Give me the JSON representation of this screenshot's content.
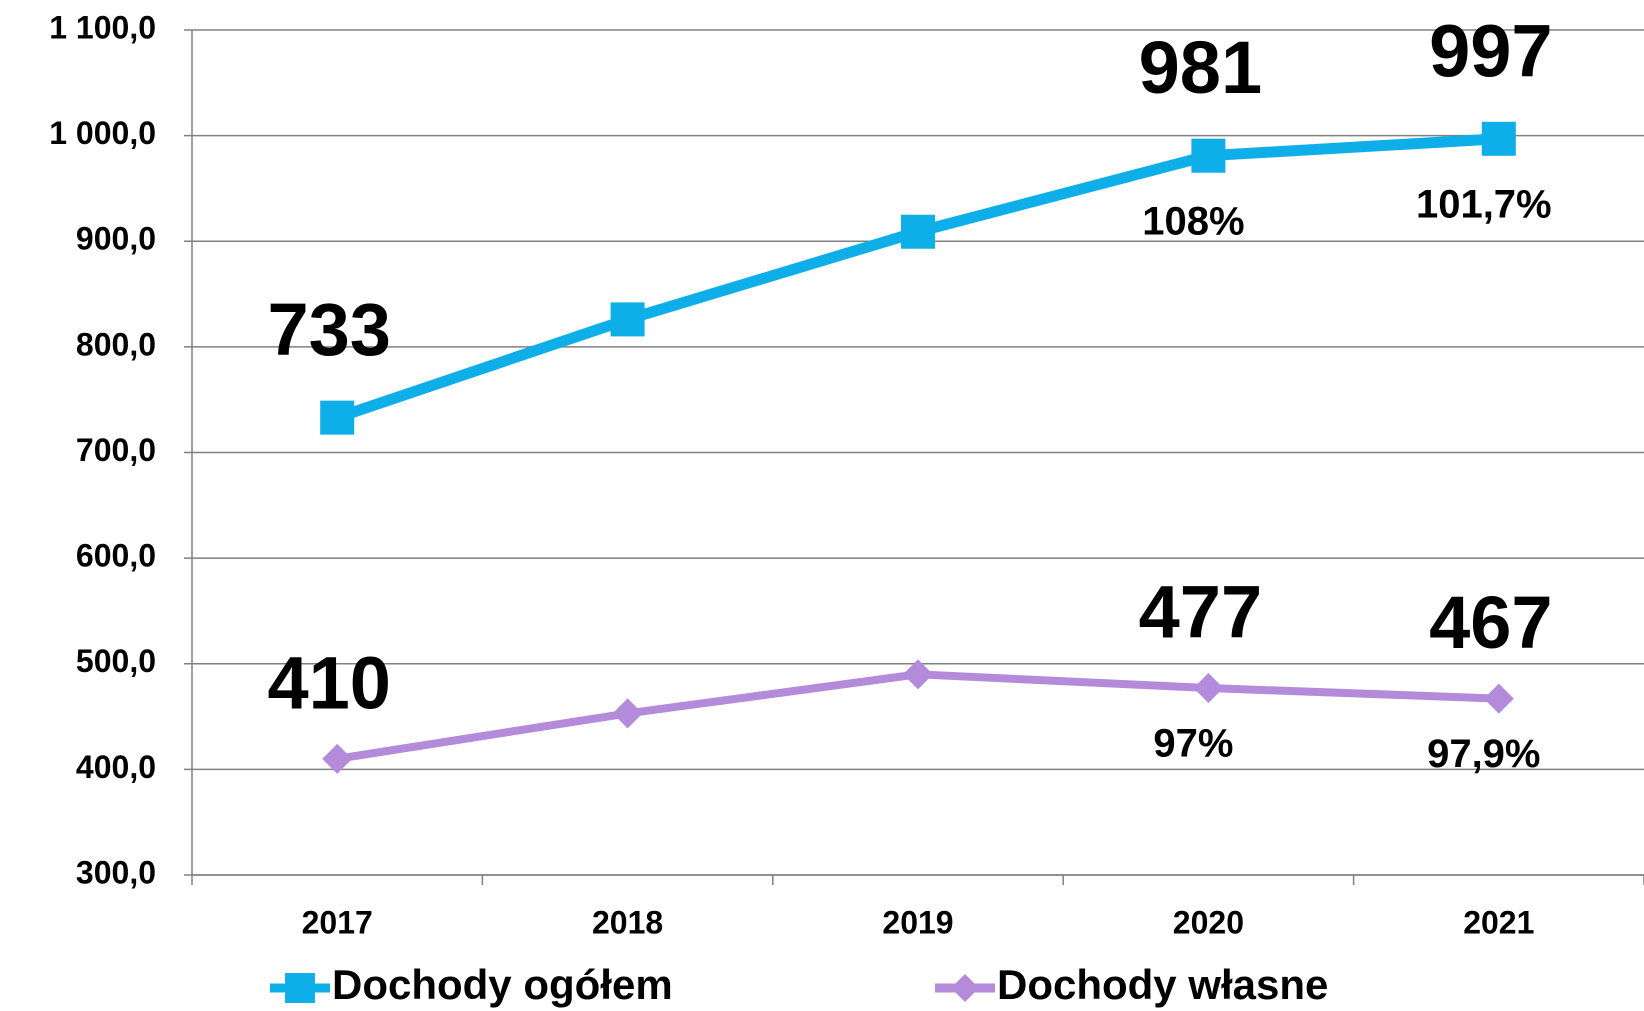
{
  "chart_data": {
    "type": "line",
    "categories": [
      "2017",
      "2018",
      "2019",
      "2020",
      "2021"
    ],
    "series": [
      {
        "name": "Dochody ogółem",
        "color": "#0eaee8",
        "marker": "square",
        "values": [
          733,
          826,
          909,
          981,
          997
        ],
        "value_labels": [
          "733",
          null,
          null,
          "981",
          "997"
        ],
        "annotations": [
          null,
          null,
          null,
          "108%",
          "101,7%"
        ]
      },
      {
        "name": "Dochody własne",
        "color": "#b48ada",
        "marker": "diamond",
        "values": [
          410,
          453,
          490,
          477,
          467
        ],
        "value_labels": [
          "410",
          null,
          null,
          "477",
          "467"
        ],
        "annotations": [
          null,
          null,
          null,
          "97%",
          "97,9%"
        ]
      }
    ],
    "ylim": [
      300,
      1100
    ],
    "yticks": [
      {
        "value": 300,
        "label": "300,0"
      },
      {
        "value": 400,
        "label": "400,0"
      },
      {
        "value": 500,
        "label": "500,0"
      },
      {
        "value": 600,
        "label": "600,0"
      },
      {
        "value": 700,
        "label": "700,0"
      },
      {
        "value": 800,
        "label": "800,0"
      },
      {
        "value": 900,
        "label": "900,0"
      },
      {
        "value": 1000,
        "label": "1 000,0"
      },
      {
        "value": 1100,
        "label": "1 100,0"
      }
    ],
    "grid": true,
    "legend": "bottom"
  }
}
